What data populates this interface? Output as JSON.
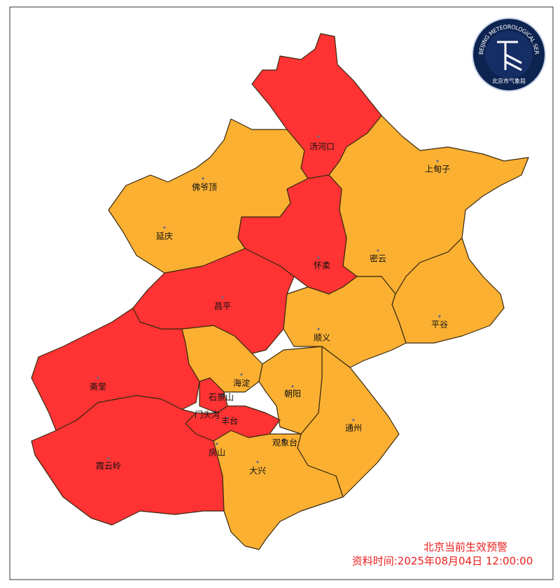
{
  "map": {
    "title": "北京当前生效预警",
    "data_time": "资料时间:2025年08月04日 12:00:00",
    "logo": {
      "ring_text": "BEIJING METEOROLOGICAL SERVICE",
      "name": "北京市气象局"
    },
    "stations": [
      {
        "name": "汤河口",
        "color": "#ff3333"
      },
      {
        "name": "佛爷顶",
        "color": "#fbb032"
      },
      {
        "name": "延庆",
        "color": "#fbb032"
      },
      {
        "name": "上甸子",
        "color": "#fbb032"
      },
      {
        "name": "怀柔",
        "color": "#ff3333"
      },
      {
        "name": "密云",
        "color": "#fbb032"
      },
      {
        "name": "昌平",
        "color": "#ff3333"
      },
      {
        "name": "平谷",
        "color": "#fbb032"
      },
      {
        "name": "顺义",
        "color": "#fbb032"
      },
      {
        "name": "斋堂",
        "color": "#ff3333"
      },
      {
        "name": "海淀",
        "color": "#fbb032"
      },
      {
        "name": "朝阳",
        "color": "#fbb032"
      },
      {
        "name": "石景山",
        "color": "#ff3333"
      },
      {
        "name": "门头沟",
        "color": "#ff3333"
      },
      {
        "name": "丰台",
        "color": "#ff3333"
      },
      {
        "name": "通州",
        "color": "#fbb032"
      },
      {
        "name": "观象台",
        "color": "#fbb032"
      },
      {
        "name": "房山",
        "color": "#ff3333"
      },
      {
        "name": "大兴",
        "color": "#fbb032"
      },
      {
        "name": "霞云岭",
        "color": "#ff3333"
      }
    ]
  }
}
